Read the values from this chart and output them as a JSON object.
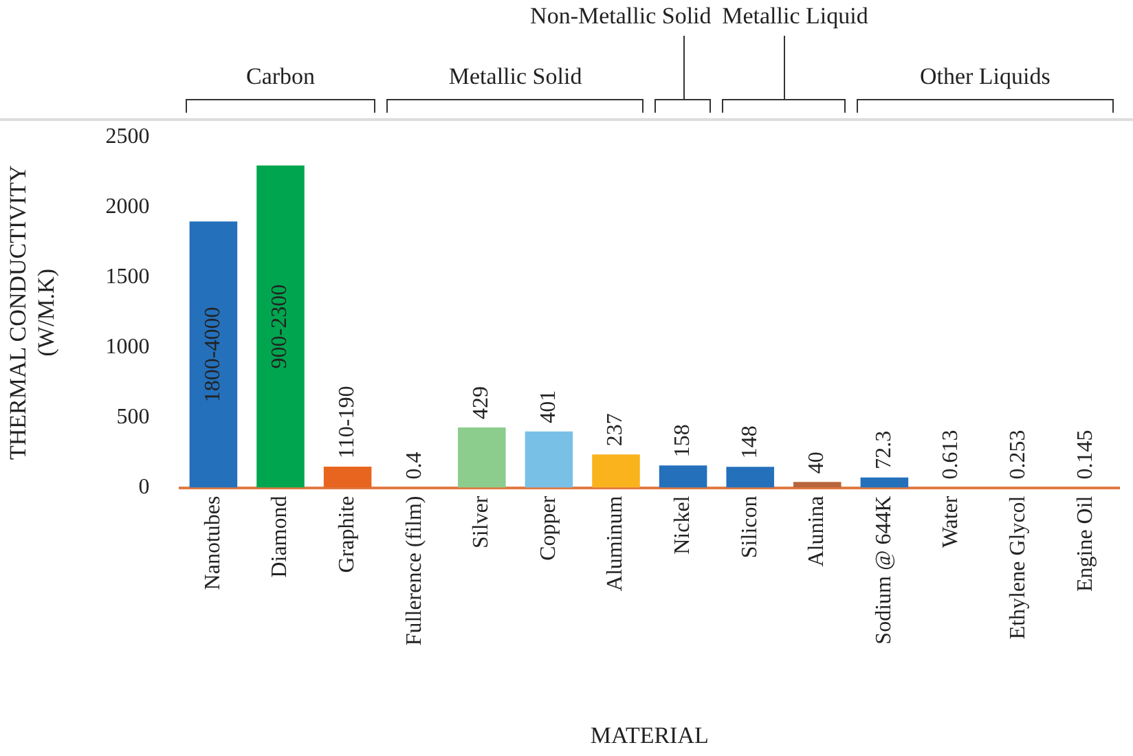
{
  "chart_data": {
    "type": "bar",
    "xlabel": "MATERIAL",
    "ylabel": "THERMAL CONDUCTIVITY (W/M.K)",
    "categories": [
      "Nanotubes",
      "Diamond",
      "Graphite",
      "Fullerence (film)",
      "Silver",
      "Copper",
      "Aluminum",
      "Nickel",
      "Silicon",
      "Alunina",
      "Sodium @ 644K",
      "Water",
      "Ethylene Glycol",
      "Engine Oil"
    ],
    "values": [
      1900,
      2300,
      150,
      0.4,
      429,
      401,
      237,
      158,
      148,
      40,
      72.3,
      0.613,
      0.253,
      0.145
    ],
    "value_labels": [
      "1800-4000",
      "900-2300",
      "110-190",
      "0.4",
      "429",
      "401",
      "237",
      "158",
      "148",
      "40",
      "72.3",
      "0.613",
      "0.253",
      "0.145"
    ],
    "colors": [
      "#2470bb",
      "#00a64f",
      "#e8651f",
      "#e8651f",
      "#8ccc8c",
      "#79c0e6",
      "#fbb31d",
      "#2470bb",
      "#2470bb",
      "#b8653c",
      "#2470bb",
      "#e8651f",
      "#e8651f",
      "#e8651f"
    ],
    "ylim": [
      0,
      2500
    ],
    "yticks": [
      0,
      500,
      1000,
      1500,
      2000,
      2500
    ],
    "grid": false,
    "legend": false,
    "annotations": [
      "Carbon",
      "Metallic Solid",
      "Non-Metallic Solid",
      "Metallic Liquid",
      "Other Liquids"
    ]
  }
}
